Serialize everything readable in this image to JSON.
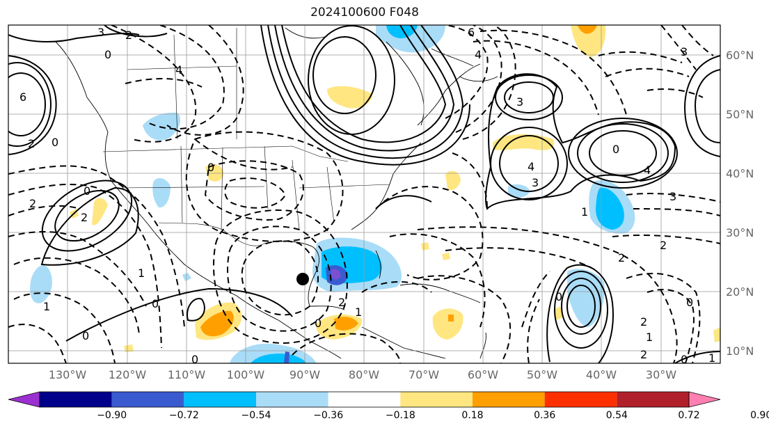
{
  "title": "2024100600 F048",
  "map": {
    "lat_labels": [
      "60°N",
      "50°N",
      "40°N",
      "30°N",
      "20°N",
      "10°N"
    ],
    "lon_labels": [
      "130°W",
      "120°W",
      "110°W",
      "100°W",
      "90°W",
      "80°W",
      "70°W",
      "60°W",
      "50°W",
      "40°W",
      "30°W"
    ],
    "contour_labels": [
      "3",
      "2",
      "0",
      "4",
      "6",
      "2",
      "0",
      "6",
      "4",
      "3",
      "3",
      "4",
      "3",
      "4",
      "3",
      "2",
      "0",
      "1",
      "2",
      "0",
      "2",
      "2",
      "1",
      "1",
      "0",
      "0",
      "0",
      "2",
      "0",
      "1",
      "0",
      "2",
      "0",
      "1",
      "0",
      "2",
      "1",
      "0"
    ],
    "storm_marker": "storm-center"
  },
  "colorbar": {
    "labels": [
      "−0.90",
      "−0.72",
      "−0.54",
      "−0.36",
      "−0.18",
      "0.18",
      "0.36",
      "0.54",
      "0.72",
      "0.90"
    ],
    "colors": [
      "#9b30d0",
      "#00008b",
      "#3a5bd0",
      "#00bfff",
      "#a9dcf7",
      "#ffffff",
      "#ffe680",
      "#ffa000",
      "#ff3000",
      "#b0202a",
      "#ff80b0"
    ]
  }
}
